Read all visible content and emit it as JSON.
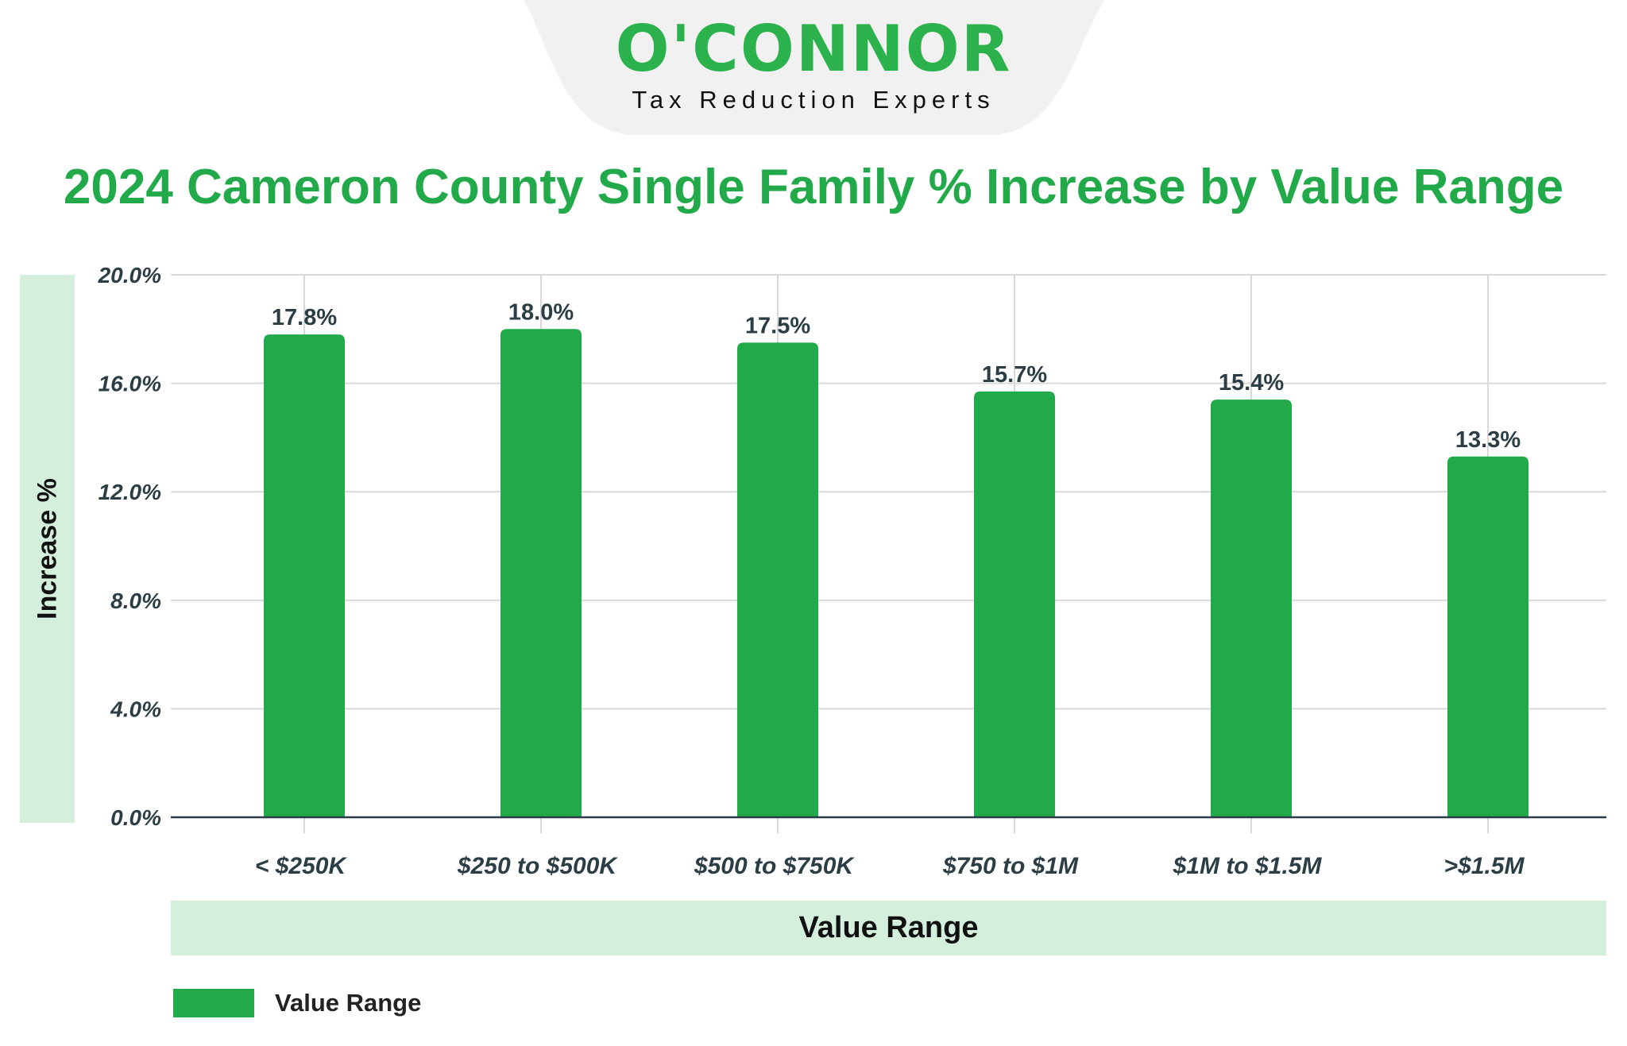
{
  "logo": {
    "name": "O'CONNOR",
    "tagline": "Tax Reduction Experts"
  },
  "colors": {
    "bar": "#22a94a",
    "brand": "#2bb24c",
    "band": "#d4efdc"
  },
  "chart_data": {
    "type": "bar",
    "title": "2024 Cameron County Single Family % Increase by Value Range",
    "xlabel": "Value Range",
    "ylabel": "Increase %",
    "categories": [
      "< $250K",
      "$250 to $500K",
      "$500 to $750K",
      "$750 to $1M",
      "$1M to $1.5M",
      ">$1.5M"
    ],
    "series": [
      {
        "name": "Value Range",
        "values": [
          17.8,
          18.0,
          17.5,
          15.7,
          15.4,
          13.3
        ]
      }
    ],
    "data_labels": [
      "17.8%",
      "18.0%",
      "17.5%",
      "15.7%",
      "15.4%",
      "13.3%"
    ],
    "ylim": [
      0,
      20
    ],
    "yticks": [
      "0.0%",
      "4.0%",
      "8.0%",
      "12.0%",
      "16.0%",
      "20.0%"
    ],
    "grid": true,
    "legend": "bottom-left"
  }
}
